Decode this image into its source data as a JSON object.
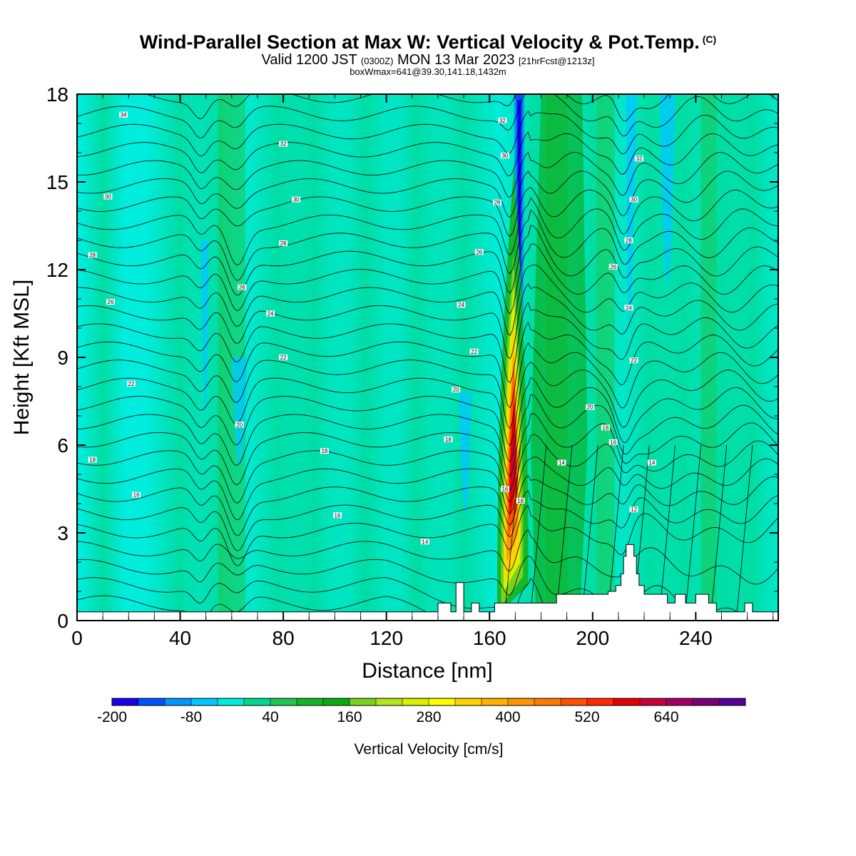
{
  "header": {
    "title": "Wind-Parallel Section at Max W: Vertical Velocity & Pot.Temp.",
    "title_mark": "(C)",
    "valid_prefix": "Valid 1200 JST",
    "valid_utc": "(0300Z)",
    "valid_date": "MON 13 Mar 2023",
    "forecast": "[21hrFcst@1213z]",
    "box_info": "boxWmax=641@39.30,141.18,1432m"
  },
  "chart_data": {
    "type": "heatmap",
    "xlabel": "Distance [nm]",
    "ylabel": "Height [Kft MSL]",
    "xlim": [
      0,
      272
    ],
    "ylim": [
      0,
      18
    ],
    "x_ticks": [
      0,
      40,
      80,
      120,
      160,
      200,
      240
    ],
    "y_ticks": [
      0,
      3,
      6,
      9,
      12,
      15,
      18
    ],
    "colorbar": {
      "label": "Vertical Velocity [cm/s]",
      "tick_labels": [
        "-200",
        "-80",
        "40",
        "160",
        "280",
        "400",
        "520",
        "640"
      ],
      "colors": [
        "#1a00e6",
        "#0052ff",
        "#0096ff",
        "#00c8ff",
        "#00ecdc",
        "#00d890",
        "#1cc850",
        "#14b428",
        "#0aaa12",
        "#78d21e",
        "#b4e61e",
        "#dcf000",
        "#ffff00",
        "#ffd200",
        "#ffb400",
        "#ff9600",
        "#ff7800",
        "#ff5000",
        "#ff2800",
        "#e60000",
        "#c8003c",
        "#a00064",
        "#780078",
        "#550096"
      ]
    },
    "max_w": 641,
    "terrain_profile": [
      [
        0,
        0.3
      ],
      [
        140,
        0.3
      ],
      [
        140,
        0.6
      ],
      [
        145,
        0.6
      ],
      [
        145,
        0.3
      ],
      [
        147,
        0.3
      ],
      [
        147,
        1.3
      ],
      [
        150,
        1.3
      ],
      [
        150,
        0.3
      ],
      [
        153,
        0.3
      ],
      [
        153,
        0.6
      ],
      [
        156,
        0.6
      ],
      [
        156,
        0.3
      ],
      [
        162,
        0.3
      ],
      [
        162,
        0.6
      ],
      [
        186,
        0.6
      ],
      [
        186,
        0.9
      ],
      [
        206,
        0.9
      ],
      [
        206,
        1.0
      ],
      [
        209,
        1.0
      ],
      [
        209,
        1.2
      ],
      [
        211,
        1.2
      ],
      [
        211,
        1.6
      ],
      [
        212,
        1.6
      ],
      [
        212,
        2.2
      ],
      [
        213,
        2.2
      ],
      [
        213,
        2.6
      ],
      [
        216,
        2.6
      ],
      [
        216,
        2.2
      ],
      [
        217,
        2.2
      ],
      [
        217,
        1.6
      ],
      [
        218,
        1.6
      ],
      [
        218,
        1.2
      ],
      [
        220,
        1.2
      ],
      [
        220,
        0.9
      ],
      [
        229,
        0.9
      ],
      [
        229,
        0.6
      ],
      [
        232,
        0.6
      ],
      [
        232,
        0.9
      ],
      [
        236,
        0.9
      ],
      [
        236,
        0.6
      ],
      [
        240,
        0.6
      ],
      [
        240,
        0.9
      ],
      [
        245,
        0.9
      ],
      [
        245,
        0.6
      ],
      [
        248,
        0.6
      ],
      [
        248,
        0.3
      ],
      [
        259,
        0.3
      ],
      [
        259,
        0.6
      ],
      [
        262,
        0.6
      ],
      [
        262,
        0.3
      ],
      [
        272,
        0.3
      ]
    ],
    "isentrope_labels": [
      {
        "text": "34",
        "x": 18,
        "y": 17.3
      },
      {
        "text": "32",
        "x": 80,
        "y": 16.3
      },
      {
        "text": "30",
        "x": 12,
        "y": 14.5
      },
      {
        "text": "30",
        "x": 85,
        "y": 14.4
      },
      {
        "text": "28",
        "x": 6,
        "y": 12.5
      },
      {
        "text": "28",
        "x": 80,
        "y": 12.9
      },
      {
        "text": "26",
        "x": 64,
        "y": 11.4
      },
      {
        "text": "26",
        "x": 13,
        "y": 10.9
      },
      {
        "text": "24",
        "x": 75,
        "y": 10.5
      },
      {
        "text": "22",
        "x": 80,
        "y": 9.0
      },
      {
        "text": "22",
        "x": 21,
        "y": 8.1
      },
      {
        "text": "20",
        "x": 63,
        "y": 6.7
      },
      {
        "text": "18",
        "x": 6,
        "y": 5.5
      },
      {
        "text": "18",
        "x": 96,
        "y": 5.8
      },
      {
        "text": "16",
        "x": 23,
        "y": 4.3
      },
      {
        "text": "16",
        "x": 101,
        "y": 3.6
      },
      {
        "text": "14",
        "x": 135,
        "y": 2.7
      },
      {
        "text": "32",
        "x": 165,
        "y": 17.1
      },
      {
        "text": "30",
        "x": 166,
        "y": 15.9
      },
      {
        "text": "28",
        "x": 163,
        "y": 14.3
      },
      {
        "text": "26",
        "x": 156,
        "y": 12.6
      },
      {
        "text": "24",
        "x": 149,
        "y": 10.8
      },
      {
        "text": "22",
        "x": 154,
        "y": 9.2
      },
      {
        "text": "20",
        "x": 147,
        "y": 7.9
      },
      {
        "text": "18",
        "x": 144,
        "y": 6.2
      },
      {
        "text": "16",
        "x": 166,
        "y": 4.5
      },
      {
        "text": "18",
        "x": 172,
        "y": 4.1
      },
      {
        "text": "14",
        "x": 188,
        "y": 5.4
      },
      {
        "text": "16",
        "x": 208,
        "y": 6.1
      },
      {
        "text": "18",
        "x": 205,
        "y": 6.6
      },
      {
        "text": "20",
        "x": 199,
        "y": 7.3
      },
      {
        "text": "22",
        "x": 216,
        "y": 8.9
      },
      {
        "text": "24",
        "x": 214,
        "y": 10.7
      },
      {
        "text": "26",
        "x": 208,
        "y": 12.1
      },
      {
        "text": "28",
        "x": 214,
        "y": 13.0
      },
      {
        "text": "30",
        "x": 216,
        "y": 14.4
      },
      {
        "text": "32",
        "x": 218,
        "y": 15.8
      },
      {
        "text": "14",
        "x": 223,
        "y": 5.4
      },
      {
        "text": "12",
        "x": 216,
        "y": 3.8
      }
    ]
  }
}
